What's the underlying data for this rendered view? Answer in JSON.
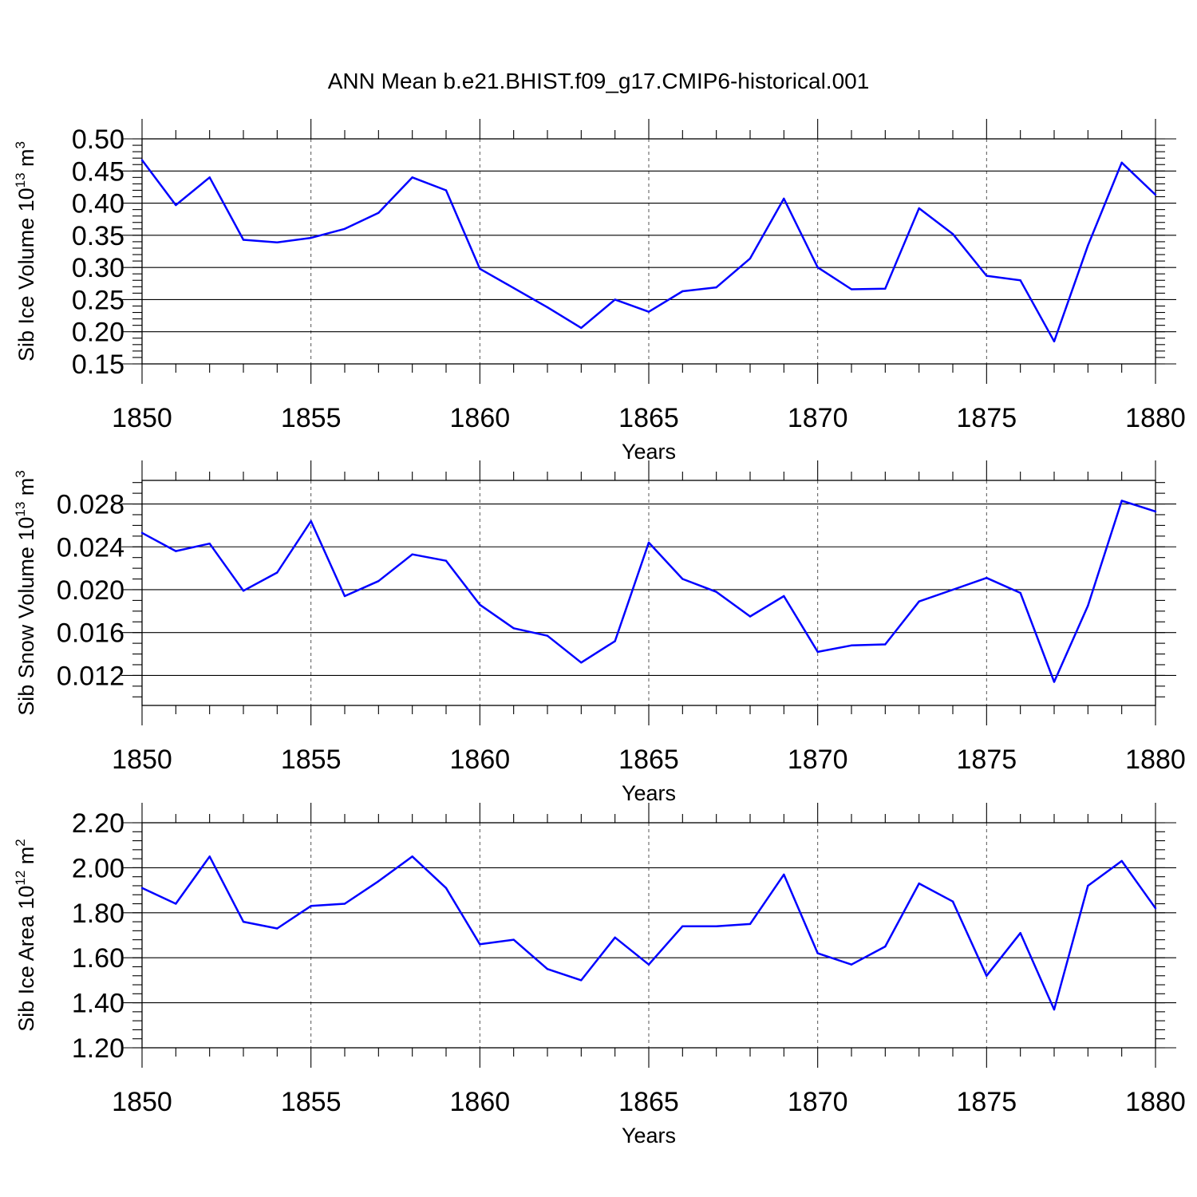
{
  "figure_title": "ANN Mean b.e21.BHIST.f09_g17.CMIP6-historical.001",
  "colors": {
    "line": "#0000ff",
    "axis": "#000000",
    "grid": "#555555"
  },
  "chart_data": [
    {
      "type": "line",
      "title": "",
      "xlabel": "Years",
      "ylabel": "Sib Ice Volume 10",
      "ylabel_exponent": "13",
      "ylabel_unit": "m",
      "ylabel_unit_exponent": "3",
      "x": [
        1850,
        1851,
        1852,
        1853,
        1854,
        1855,
        1856,
        1857,
        1858,
        1859,
        1860,
        1861,
        1862,
        1863,
        1864,
        1865,
        1866,
        1867,
        1868,
        1869,
        1870,
        1871,
        1872,
        1873,
        1874,
        1875,
        1876,
        1877,
        1878,
        1879,
        1880
      ],
      "values": [
        0.467,
        0.397,
        0.44,
        0.343,
        0.339,
        0.346,
        0.36,
        0.385,
        0.44,
        0.42,
        0.298,
        0.268,
        0.238,
        0.206,
        0.25,
        0.231,
        0.263,
        0.269,
        0.314,
        0.407,
        0.3,
        0.266,
        0.267,
        0.392,
        0.352,
        0.287,
        0.28,
        0.185,
        0.334,
        0.463,
        0.413
      ],
      "xlim": [
        1850,
        1880
      ],
      "ylim": [
        0.15,
        0.5
      ],
      "xticks": [
        "1850",
        "1855",
        "1860",
        "1865",
        "1870",
        "1875",
        "1880"
      ],
      "yticks": [
        "0.50",
        "0.45",
        "0.40",
        "0.35",
        "0.30",
        "0.25",
        "0.20",
        "0.15"
      ],
      "ytick_values": [
        0.5,
        0.45,
        0.4,
        0.35,
        0.3,
        0.25,
        0.2,
        0.15
      ],
      "y_minor_step": 0.01,
      "grid": "vertical dashed at major x ticks"
    },
    {
      "type": "line",
      "title": "",
      "xlabel": "Years",
      "ylabel": "Sib Snow Volume 10",
      "ylabel_exponent": "13",
      "ylabel_unit": "m",
      "ylabel_unit_exponent": "3",
      "x": [
        1850,
        1851,
        1852,
        1853,
        1854,
        1855,
        1856,
        1857,
        1858,
        1859,
        1860,
        1861,
        1862,
        1863,
        1864,
        1865,
        1866,
        1867,
        1868,
        1869,
        1870,
        1871,
        1872,
        1873,
        1874,
        1875,
        1876,
        1877,
        1878,
        1879,
        1880
      ],
      "values": [
        0.0253,
        0.0236,
        0.0243,
        0.0199,
        0.0216,
        0.0264,
        0.0194,
        0.0208,
        0.0233,
        0.0227,
        0.0186,
        0.0164,
        0.0157,
        0.0132,
        0.0152,
        0.0244,
        0.021,
        0.0198,
        0.0175,
        0.0194,
        0.0142,
        0.0148,
        0.0149,
        0.0189,
        0.02,
        0.0211,
        0.0197,
        0.0114,
        0.0185,
        0.0283,
        0.0273
      ],
      "xlim": [
        1850,
        1880
      ],
      "ylim": [
        0.0092,
        0.0302
      ],
      "xticks": [
        "1850",
        "1855",
        "1860",
        "1865",
        "1870",
        "1875",
        "1880"
      ],
      "yticks": [
        "0.028",
        "0.024",
        "0.020",
        "0.016",
        "0.012"
      ],
      "ytick_values": [
        0.028,
        0.024,
        0.02,
        0.016,
        0.012
      ],
      "y_minor_step": 0.001,
      "grid": "vertical dashed at major x ticks"
    },
    {
      "type": "line",
      "title": "",
      "xlabel": "Years",
      "ylabel": "Sib Ice Area 10",
      "ylabel_exponent": "12",
      "ylabel_unit": "m",
      "ylabel_unit_exponent": "2",
      "x": [
        1850,
        1851,
        1852,
        1853,
        1854,
        1855,
        1856,
        1857,
        1858,
        1859,
        1860,
        1861,
        1862,
        1863,
        1864,
        1865,
        1866,
        1867,
        1868,
        1869,
        1870,
        1871,
        1872,
        1873,
        1874,
        1875,
        1876,
        1877,
        1878,
        1879,
        1880
      ],
      "values": [
        1.91,
        1.84,
        2.05,
        1.76,
        1.73,
        1.83,
        1.84,
        1.94,
        2.05,
        1.91,
        1.66,
        1.68,
        1.55,
        1.5,
        1.69,
        1.57,
        1.74,
        1.74,
        1.75,
        1.97,
        1.62,
        1.57,
        1.65,
        1.93,
        1.85,
        1.52,
        1.71,
        1.37,
        1.92,
        2.03,
        1.82
      ],
      "xlim": [
        1850,
        1880
      ],
      "ylim": [
        1.2,
        2.2
      ],
      "xticks": [
        "1850",
        "1855",
        "1860",
        "1865",
        "1870",
        "1875",
        "1880"
      ],
      "yticks": [
        "2.20",
        "2.00",
        "1.80",
        "1.60",
        "1.40",
        "1.20"
      ],
      "ytick_values": [
        2.2,
        2.0,
        1.8,
        1.6,
        1.4,
        1.2
      ],
      "y_minor_step": 0.04,
      "grid": "vertical dashed at major x ticks"
    }
  ]
}
